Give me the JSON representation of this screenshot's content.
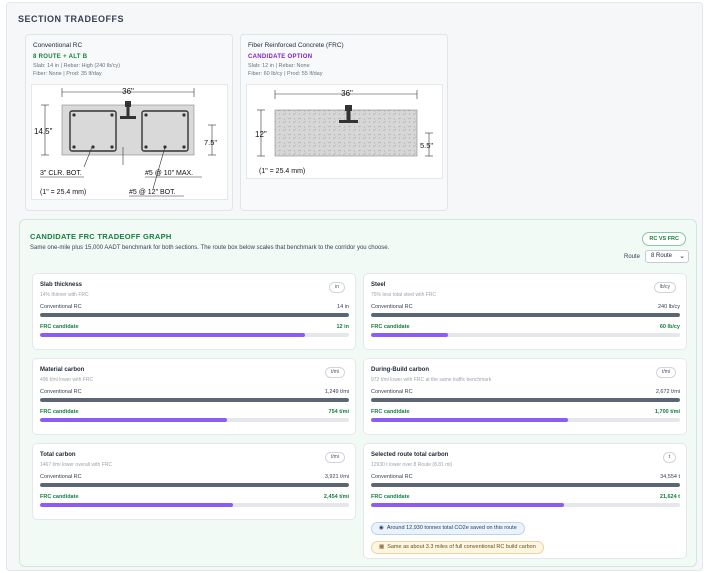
{
  "section_title": "SECTION TRADEOFFS",
  "sections": {
    "rc": {
      "name": "Conventional RC",
      "tag": "8 ROUTE + ALT B",
      "meta1": "Slab: 14 in | Rebar: High (240 lb/cy)",
      "meta2": "Fiber: None | Prod: 35 lf/day",
      "diagram": {
        "width_label": "36\"",
        "height_label": "14.5\"",
        "depth_label": "7.5\"",
        "clr_label": "3\" CLR. BOT.",
        "rebar_top": "#5 @ 10\" MAX.",
        "rebar_bot": "#5 @ 12\" BOT.",
        "conv_label": "(1\" = 25.4 mm)"
      }
    },
    "frc": {
      "name": "Fiber Reinforced Concrete (FRC)",
      "tag": "CANDIDATE OPTION",
      "meta1": "Slab: 12 in | Rebar: None",
      "meta2": "Fiber: 60 lb/cy | Prod: 55 lf/day",
      "diagram": {
        "width_label": "36\"",
        "height_label": "12\"",
        "depth_label": "5.5\"",
        "conv_label": "(1\" = 25.4 mm)"
      }
    }
  },
  "graph": {
    "title": "CANDIDATE FRC TRADEOFF GRAPH",
    "subtitle": "Same one-mile plus 15,000 AADT benchmark for both sections. The route box below scales that benchmark to the corridor you choose.",
    "badge": "RC VS FRC",
    "route_label": "Route",
    "route_value": "8 Route",
    "rc_label": "Conventional RC",
    "frc_label": "FRC candidate",
    "metrics": {
      "slab": {
        "title": "Slab thickness",
        "sub": "14% thinner with FRC",
        "unit": "in",
        "rc_value": "14 in",
        "frc_value": "12 in",
        "rc_frac": 1.0,
        "frc_frac": 0.857
      },
      "steel": {
        "title": "Steel",
        "sub": "75% less total steel with FRC",
        "unit": "lb/cy",
        "rc_value": "240 lb/cy",
        "frc_value": "60 lb/cy",
        "rc_frac": 1.0,
        "frc_frac": 0.25
      },
      "material": {
        "title": "Material carbon",
        "sub": "496 t/mi lower with FRC",
        "unit": "t/mi",
        "rc_value": "1,249 t/mi",
        "frc_value": "754 t/mi",
        "rc_frac": 1.0,
        "frc_frac": 0.604
      },
      "during": {
        "title": "During-Build carbon",
        "sub": "972 t/mi lower with FRC at the same traffic benchmark",
        "unit": "t/mi",
        "rc_value": "2,672 t/mi",
        "frc_value": "1,700 t/mi",
        "rc_frac": 1.0,
        "frc_frac": 0.636
      },
      "total": {
        "title": "Total carbon",
        "sub": "1467 t/mi lower overall with FRC",
        "unit": "t/mi",
        "rc_value": "3,921 t/mi",
        "frc_value": "2,454 t/mi",
        "rc_frac": 1.0,
        "frc_frac": 0.626
      },
      "route": {
        "title": "Selected route total carbon",
        "sub": "12930 t lower over 8 Route (8.81 mi)",
        "unit": "t",
        "rc_value": "34,554 t",
        "frc_value": "21,624 t",
        "rc_frac": 1.0,
        "frc_frac": 0.626
      }
    },
    "note_saved": "Around 12,930 tonnes total CO2e saved on this route",
    "note_equiv": "Same as about 3.3 miles of full conventional RC build carbon"
  }
}
